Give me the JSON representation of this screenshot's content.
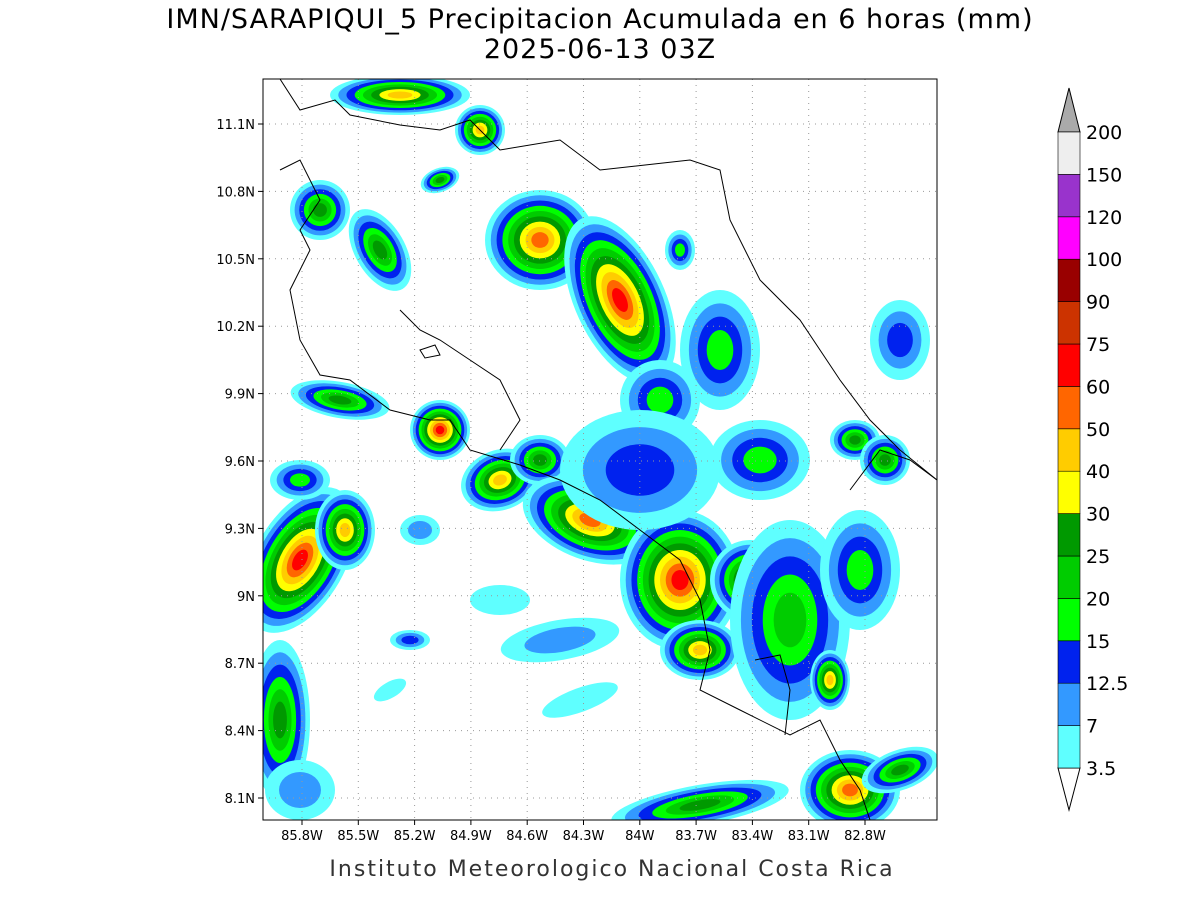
{
  "header": {
    "title": "IMN/SARAPIQUI_5 Precipitacion Acumulada en 6 horas (mm)",
    "subtitle": "2025-06-13 03Z"
  },
  "map": {
    "lon_ticks": [
      "85.8W",
      "85.5W",
      "85.2W",
      "84.9W",
      "84.6W",
      "84.3W",
      "84W",
      "83.7W",
      "83.4W",
      "83.1W",
      "82.8W"
    ],
    "lat_ticks": [
      "11.1N",
      "10.8N",
      "10.5N",
      "10.2N",
      "9.9N",
      "9.6N",
      "9.3N",
      "9N",
      "8.7N",
      "8.4N",
      "8.1N"
    ]
  },
  "colorbar": {
    "labels": [
      "3.5",
      "7",
      "12.5",
      "15",
      "20",
      "25",
      "30",
      "40",
      "50",
      "60",
      "75",
      "90",
      "100",
      "120",
      "150",
      "200"
    ],
    "colors": [
      "#5fffff",
      "#3399ff",
      "#0022ee",
      "#00ff00",
      "#00cc00",
      "#009900",
      "#ffff00",
      "#ffcc00",
      "#ff6600",
      "#ff0000",
      "#cc3300",
      "#990000",
      "#ff00ff",
      "#9933cc",
      "#eeeeee"
    ],
    "over_color": "#aaaaaa",
    "under_color": "#ffffff"
  },
  "footer": "Instituto Meteorologico Nacional Costa Rica"
}
